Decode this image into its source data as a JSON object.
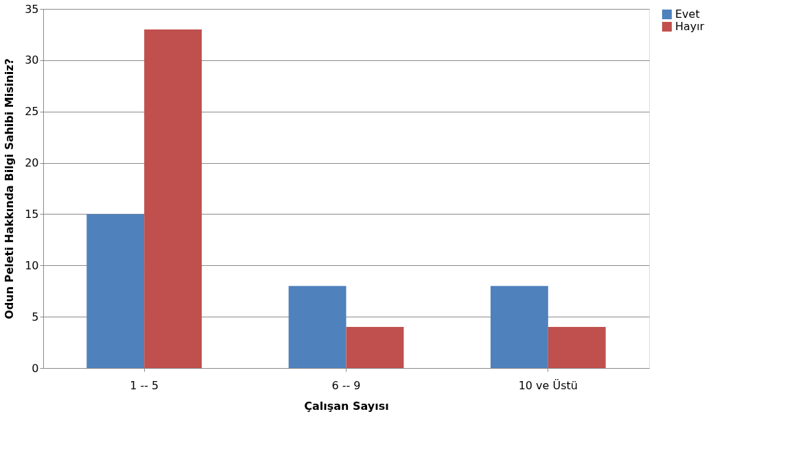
{
  "chart_data": {
    "type": "bar",
    "xlabel": "Çalışan Sayısı",
    "ylabel": "Odun Peleti Hakkında Bilgi Sahibi Misiniz?",
    "categories": [
      "1 -- 5",
      "6 -- 9",
      "10 ve Üstü"
    ],
    "series": [
      {
        "name": "Evet",
        "color": "#4f81bd",
        "values": [
          15,
          8,
          8
        ]
      },
      {
        "name": "Hayır",
        "color": "#c0504d",
        "values": [
          33,
          4,
          4
        ]
      }
    ],
    "ylim": [
      0,
      35
    ],
    "yticks": [
      0,
      5,
      10,
      15,
      20,
      25,
      30,
      35
    ],
    "grid": "y",
    "legend": "right"
  }
}
